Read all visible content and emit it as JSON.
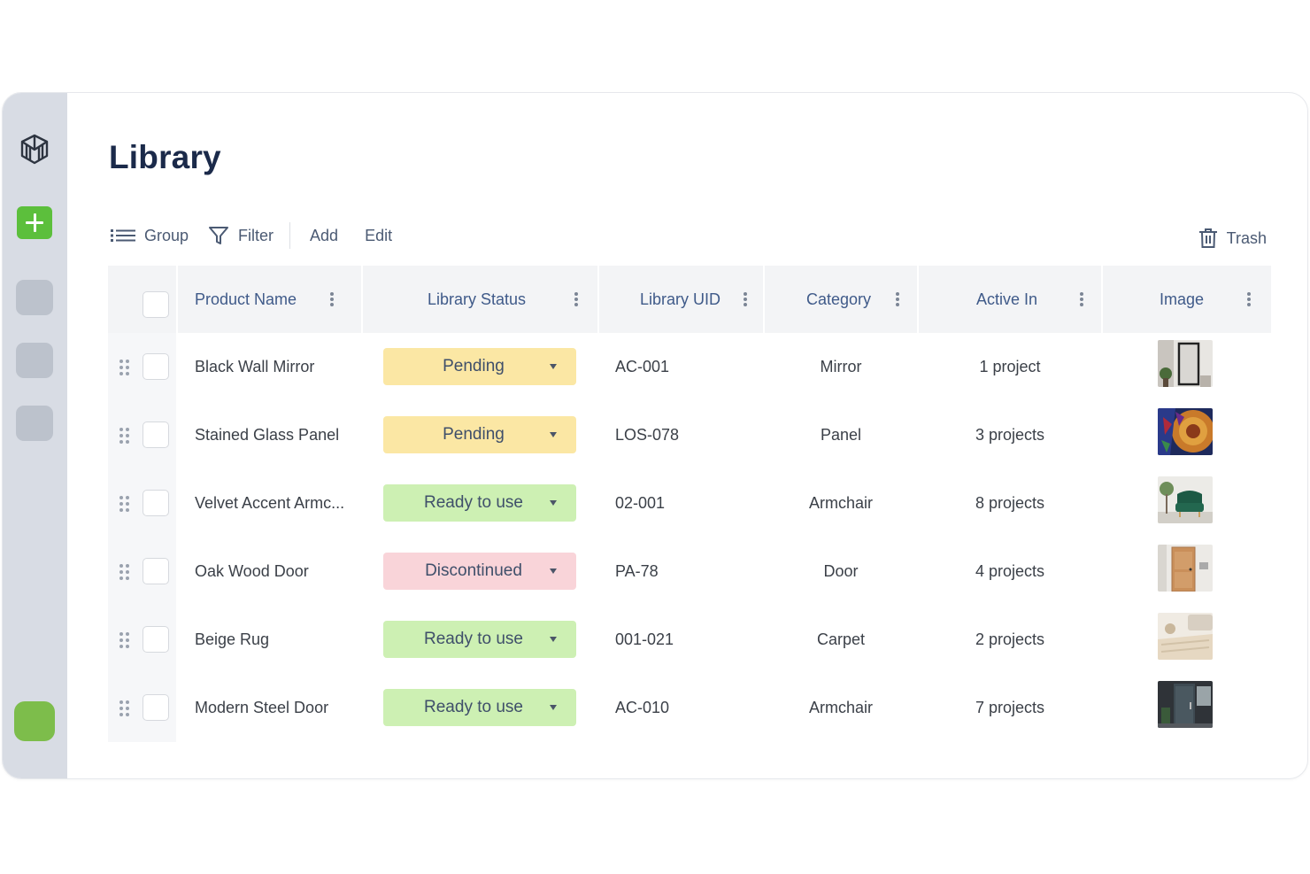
{
  "page": {
    "title": "Library"
  },
  "toolbar": {
    "group": "Group",
    "filter": "Filter",
    "add": "Add",
    "edit": "Edit",
    "trash": "Trash"
  },
  "columns": {
    "product_name": "Product Name",
    "library_status": "Library Status",
    "library_uid": "Library UID",
    "category": "Category",
    "active_in": "Active In",
    "image": "Image"
  },
  "colors": {
    "pending": "#fbe7a4",
    "ready": "#cdf0b3",
    "discontinued": "#f9d4d9",
    "accent_green": "#5cbf3c"
  },
  "rows": [
    {
      "name": "Black Wall Mirror",
      "status": "Pending",
      "status_type": "pending",
      "uid": "AC-001",
      "category": "Mirror",
      "active_in": "1 project",
      "image_icon": "mirror-image"
    },
    {
      "name": "Stained Glass Panel",
      "status": "Pending",
      "status_type": "pending",
      "uid": "LOS-078",
      "category": "Panel",
      "active_in": "3 projects",
      "image_icon": "stained-glass-image"
    },
    {
      "name": "Velvet Accent Armc...",
      "status": "Ready to use",
      "status_type": "ready",
      "uid": "02-001",
      "category": "Armchair",
      "active_in": "8 projects",
      "image_icon": "armchair-image"
    },
    {
      "name": "Oak Wood Door",
      "status": "Discontinued",
      "status_type": "disc",
      "uid": "PA-78",
      "category": "Door",
      "active_in": "4 projects",
      "image_icon": "wood-door-image"
    },
    {
      "name": "Beige Rug",
      "status": "Ready to use",
      "status_type": "ready",
      "uid": "001-021",
      "category": "Carpet",
      "active_in": "2 projects",
      "image_icon": "rug-image"
    },
    {
      "name": "Modern Steel Door",
      "status": "Ready to use",
      "status_type": "ready",
      "uid": "AC-010",
      "category": "Armchair",
      "active_in": "7 projects",
      "image_icon": "steel-door-image"
    }
  ]
}
